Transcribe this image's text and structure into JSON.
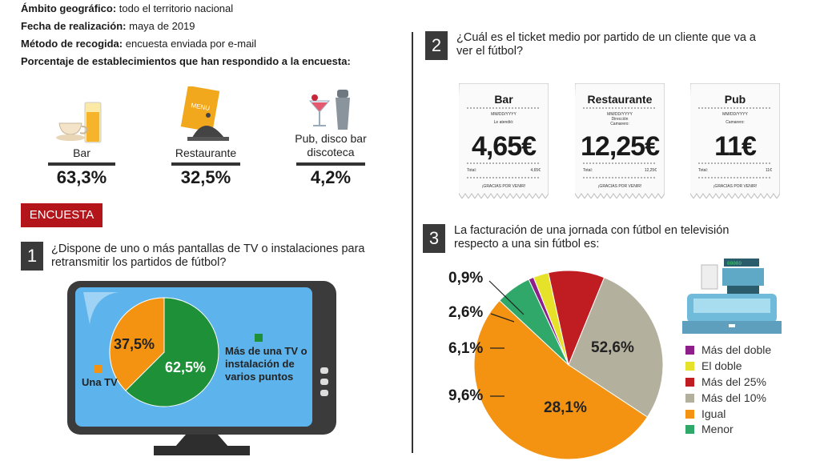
{
  "meta": {
    "ambito_label": "Ámbito geográfico:",
    "ambito_value": "todo el territorio nacional",
    "fecha_label": "Fecha de realización:",
    "fecha_value": "maya de 2019",
    "metodo_label": "Método de recogida:",
    "metodo_value": "encuesta enviada por e-mail",
    "porcentaje_label": "Porcentaje de establecimientos que han respondido a la encuesta:"
  },
  "establecimientos": [
    {
      "label": "Bar",
      "pct": "63,3%",
      "icon": "coffee-juice-icon"
    },
    {
      "label": "Restaurante",
      "pct": "32,5%",
      "icon": "menu-cloche-icon"
    },
    {
      "label": "Pub, disco bar discoteca",
      "pct": "4,2%",
      "icon": "cocktail-shaker-icon"
    }
  ],
  "encuesta_label": "ENCUESTA",
  "q1": {
    "number": "1",
    "text": "¿Dispone de uno o más pantallas de TV o instalaciones para retransmitir los partidos de fútbol?",
    "legend_una": "Una TV",
    "legend_mas": "Más de una TV o instalación de varios puntos"
  },
  "q2": {
    "number": "2",
    "text": "¿Cuál es el ticket medio por partido de un cliente que va a ver el fútbol?",
    "tickets": [
      {
        "title": "Bar",
        "amount": "4,65€",
        "date": "MM/DD/YYYY",
        "line2": "Le atendió:",
        "line3": "",
        "total_label": "Total:",
        "total_value": "4,65€",
        "thanks": "¡GRACIAS POR VENIR!"
      },
      {
        "title": "Restaurante",
        "amount": "12,25€",
        "date": "MM/DD/YYYY",
        "line2": "Dirección",
        "line3": "Camarero:",
        "total_label": "Total:",
        "total_value": "12,25€",
        "thanks": "¡GRACIAS POR VENIR!"
      },
      {
        "title": "Pub",
        "amount": "11€",
        "date": "MM/DD/YYYY",
        "line2": "Camarero:",
        "line3": "",
        "total_label": "Total:",
        "total_value": "11€",
        "thanks": "¡GRACIAS POR VENIR!"
      }
    ]
  },
  "q3": {
    "number": "3",
    "text": "La facturación de una jornada con fútbol en televisión respecto a una sin fútbol es:",
    "register_display": "00000"
  },
  "chart_data": [
    {
      "type": "pie",
      "categories": [
        "Más de una TV o instalación de varios puntos",
        "Una TV"
      ],
      "values": [
        62.5,
        37.5
      ],
      "labels": [
        "62,5%",
        "37,5%"
      ],
      "colors": [
        "#1e9138",
        "#f39311"
      ]
    },
    {
      "type": "pie",
      "categories": [
        "Más del doble",
        "El doble",
        "Más del 25%",
        "Más del 10%",
        "Igual",
        "Menor"
      ],
      "values": [
        0.9,
        2.6,
        9.6,
        28.1,
        52.6,
        6.1
      ],
      "labels": [
        "0,9%",
        "2,6%",
        "9,6%",
        "28,1%",
        "52,6%",
        "6,1%"
      ],
      "colors": [
        "#8e1e8a",
        "#e6e129",
        "#c01d22",
        "#b3b09d",
        "#f39311",
        "#2fa86a"
      ]
    }
  ]
}
